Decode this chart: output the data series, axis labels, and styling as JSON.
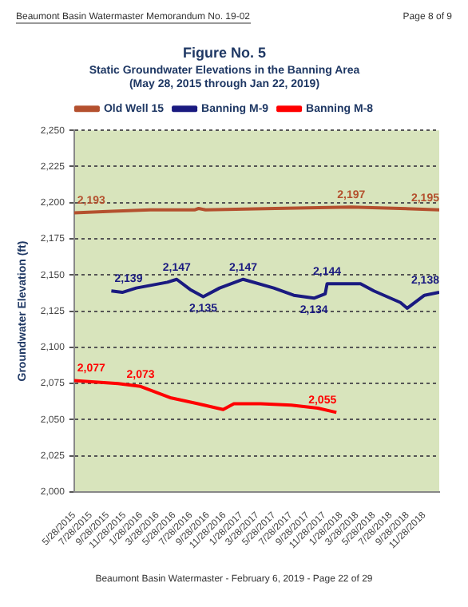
{
  "chart_data": {
    "type": "line",
    "title": "Figure No. 5",
    "subtitle": "Static Groundwater Elevations in the Banning Area\n(May 28, 2015 through Jan 22, 2019)",
    "ylabel": "Groundwater Elevation (ft)",
    "annotations": [
      "Beaumont Basin Watermaster Memorandum No. 19-02",
      "Page 8 of 9",
      "Beaumont Basin Watermaster - February 6, 2019 - Page 22 of 29"
    ],
    "series": [
      {
        "name": "Old Well 15",
        "color": "#b4502e",
        "x": [
          "2015-05-28",
          "2015-10-15",
          "2016-03-01",
          "2016-08-10",
          "2016-08-25",
          "2016-09-20",
          "2017-06-01",
          "2018-03-06",
          "2018-09-01",
          "2019-01-22"
        ],
        "values": [
          2193,
          2194,
          2195,
          2195,
          2196,
          2195,
          2196,
          2197,
          2196,
          2195
        ],
        "value_labels": [
          "2,193",
          null,
          null,
          null,
          null,
          null,
          null,
          "2,197",
          null,
          "2,195"
        ]
      },
      {
        "name": "Banning M-9",
        "color": "#1a1a80",
        "x": [
          "2015-10-11",
          "2015-11-20",
          "2016-01-10",
          "2016-05-03",
          "2016-06-06",
          "2016-07-25",
          "2016-09-11",
          "2016-11-10",
          "2017-02-04",
          "2017-05-27",
          "2017-08-08",
          "2017-10-21",
          "2017-12-01",
          "2017-12-08",
          "2018-04-09",
          "2018-05-28",
          "2018-09-02",
          "2018-09-27",
          "2018-11-29",
          "2019-01-22"
        ],
        "values": [
          2139,
          2138,
          2141,
          2145,
          2147,
          2140,
          2135,
          2141,
          2147,
          2141,
          2136,
          2134,
          2137,
          2144,
          2144,
          2139,
          2131,
          2127,
          2136,
          2138
        ],
        "value_labels": [
          "2,139",
          null,
          null,
          null,
          "2,147",
          null,
          "2,135",
          null,
          "2,147",
          null,
          null,
          "2,134",
          null,
          "2,144",
          null,
          null,
          null,
          null,
          null,
          "2,138"
        ]
      },
      {
        "name": "Banning M-8",
        "color": "#ff0000",
        "x": [
          "2015-05-28",
          "2015-11-05",
          "2016-01-26",
          "2016-05-17",
          "2016-08-23",
          "2016-11-23",
          "2017-01-01",
          "2017-04-09",
          "2017-07-30",
          "2017-11-04",
          "2018-01-11"
        ],
        "values": [
          2077,
          2075,
          2073,
          2065,
          2061,
          2057,
          2061,
          2061,
          2060,
          2058,
          2055
        ],
        "value_labels": [
          "2,077",
          null,
          "2,073",
          null,
          null,
          null,
          null,
          null,
          null,
          null,
          "2,055"
        ]
      }
    ],
    "xlim": [
      "2015-05-28",
      "2019-01-22"
    ],
    "xticks": [
      {
        "value": "2015-05-28",
        "label": "5/28/2015"
      },
      {
        "value": "2015-07-28",
        "label": "7/28/2015"
      },
      {
        "value": "2015-09-28",
        "label": "9/28/2015"
      },
      {
        "value": "2015-11-28",
        "label": "11/28/2015"
      },
      {
        "value": "2016-01-28",
        "label": "1/28/2016"
      },
      {
        "value": "2016-03-28",
        "label": "3/28/2016"
      },
      {
        "value": "2016-05-28",
        "label": "5/28/2016"
      },
      {
        "value": "2016-07-28",
        "label": "7/28/2016"
      },
      {
        "value": "2016-09-28",
        "label": "9/28/2016"
      },
      {
        "value": "2016-11-28",
        "label": "11/28/2016"
      },
      {
        "value": "2017-01-28",
        "label": "1/28/2017"
      },
      {
        "value": "2017-03-28",
        "label": "3/28/2017"
      },
      {
        "value": "2017-05-28",
        "label": "5/28/2017"
      },
      {
        "value": "2017-07-28",
        "label": "7/28/2017"
      },
      {
        "value": "2017-09-28",
        "label": "9/28/2017"
      },
      {
        "value": "2017-11-28",
        "label": "11/28/2017"
      },
      {
        "value": "2018-01-28",
        "label": "1/28/2018"
      },
      {
        "value": "2018-03-28",
        "label": "3/28/2018"
      },
      {
        "value": "2018-05-28",
        "label": "5/28/2018"
      },
      {
        "value": "2018-07-28",
        "label": "7/28/2018"
      },
      {
        "value": "2018-09-28",
        "label": "9/28/2018"
      },
      {
        "value": "2018-11-28",
        "label": "11/28/2018"
      }
    ],
    "ylim": [
      2000,
      2250
    ],
    "yticks": [
      {
        "value": 2000,
        "label": "2,000"
      },
      {
        "value": 2025,
        "label": "2,025"
      },
      {
        "value": 2050,
        "label": "2,050"
      },
      {
        "value": 2075,
        "label": "2,075"
      },
      {
        "value": 2100,
        "label": "2,100"
      },
      {
        "value": 2125,
        "label": "2,125"
      },
      {
        "value": 2150,
        "label": "2,150"
      },
      {
        "value": 2175,
        "label": "2,175"
      },
      {
        "value": 2200,
        "label": "2,200"
      },
      {
        "value": 2225,
        "label": "2,225"
      },
      {
        "value": 2250,
        "label": "2,250"
      }
    ],
    "grid": "y",
    "legend": "top",
    "marker": "none",
    "line_style": "solid"
  }
}
